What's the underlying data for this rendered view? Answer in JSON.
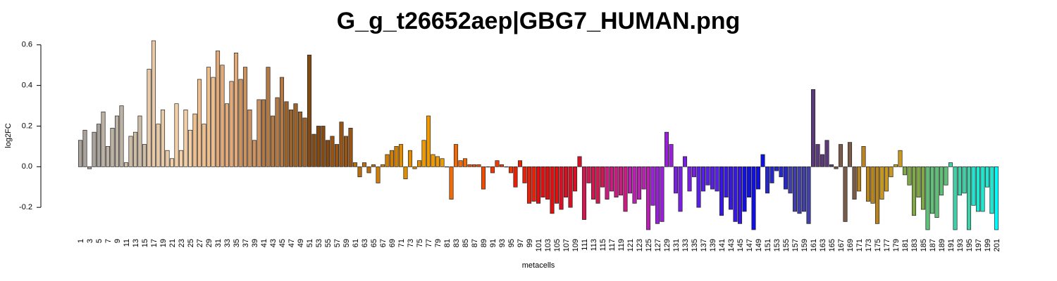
{
  "chart_data": {
    "type": "bar",
    "title": "G_g_t26652aep|GBG7_HUMAN.png",
    "xlabel": "metacells",
    "ylabel": "log2FC",
    "categories": [
      "1",
      null,
      "3",
      null,
      "5",
      null,
      "7",
      null,
      "9",
      null,
      "11",
      null,
      "13",
      null,
      "15",
      null,
      "17",
      null,
      "19",
      null,
      "21",
      null,
      "23",
      null,
      "25",
      null,
      "27",
      null,
      "29",
      null,
      "31",
      null,
      "33",
      null,
      "35",
      null,
      "37",
      null,
      "39",
      null,
      "41",
      null,
      "43",
      null,
      "45",
      null,
      "47",
      null,
      "49",
      null,
      "51",
      null,
      "53",
      null,
      "55",
      null,
      "57",
      null,
      "59",
      null,
      "61",
      null,
      "63",
      null,
      "65",
      null,
      "67",
      null,
      "69",
      null,
      "71",
      null,
      "73",
      null,
      "75",
      null,
      "77",
      null,
      "79",
      null,
      "81",
      null,
      "83",
      null,
      "85",
      null,
      "87",
      null,
      "89",
      null,
      "91",
      null,
      "93",
      null,
      "95",
      null,
      "97",
      null,
      "99",
      null,
      "101",
      null,
      "103",
      null,
      "105",
      null,
      "107",
      null,
      "109",
      null,
      "111",
      null,
      "113",
      null,
      "115",
      null,
      "117",
      null,
      "119",
      null,
      "121",
      null,
      "123",
      null,
      "125",
      null,
      "127",
      null,
      "129",
      null,
      "131",
      null,
      "133",
      null,
      "135",
      null,
      "137",
      null,
      "139",
      null,
      "141",
      null,
      "143",
      null,
      "145",
      null,
      "147",
      null,
      "149",
      null,
      "151",
      null,
      "153",
      null,
      "155",
      null,
      "157",
      null,
      "159",
      null,
      "161",
      null,
      "163",
      null,
      "165",
      null,
      "167",
      null,
      "169",
      null,
      "171",
      null,
      "173",
      null,
      "175",
      null,
      "177",
      null,
      "179",
      null,
      "181",
      null,
      "183",
      null,
      "185",
      null,
      "187",
      null,
      "189",
      null,
      "191",
      null,
      "193",
      null,
      "195",
      null,
      "197",
      null,
      "199",
      null,
      "201"
    ],
    "values": [
      0.13,
      0.18,
      -0.01,
      0.17,
      0.21,
      0.27,
      0.1,
      0.19,
      0.25,
      0.3,
      0.02,
      0.15,
      0.17,
      0.25,
      0.11,
      0.48,
      0.62,
      0.21,
      0.28,
      0.08,
      0.04,
      0.31,
      0.08,
      0.28,
      0.18,
      0.26,
      0.43,
      0.21,
      0.49,
      0.44,
      0.57,
      0.5,
      0.31,
      0.42,
      0.56,
      0.43,
      0.49,
      0.28,
      0.13,
      0.33,
      0.33,
      0.49,
      0.25,
      0.34,
      0.44,
      0.32,
      0.28,
      0.31,
      0.27,
      0.24,
      0.55,
      0.16,
      0.2,
      0.2,
      0.13,
      0.15,
      0.11,
      0.22,
      0.15,
      0.19,
      0.02,
      -0.05,
      0.02,
      -0.03,
      0.01,
      -0.08,
      0.01,
      0.06,
      0.08,
      0.1,
      0.11,
      -0.06,
      0.08,
      -0.01,
      0.03,
      0.13,
      0.25,
      0.06,
      0.05,
      0.04,
      0.0,
      -0.16,
      0.11,
      0.03,
      0.04,
      0.01,
      0.01,
      0.01,
      -0.11,
      0.0,
      -0.03,
      0.03,
      0.01,
      0.0,
      -0.03,
      -0.1,
      0.03,
      -0.08,
      -0.18,
      -0.17,
      -0.18,
      -0.15,
      -0.16,
      -0.23,
      -0.18,
      -0.21,
      -0.15,
      -0.2,
      -0.12,
      0.05,
      -0.26,
      -0.08,
      -0.16,
      -0.18,
      -0.1,
      -0.16,
      -0.12,
      -0.15,
      -0.14,
      -0.22,
      -0.13,
      -0.18,
      -0.16,
      -0.11,
      -0.31,
      -0.19,
      -0.28,
      -0.27,
      0.17,
      0.11,
      -0.13,
      -0.22,
      0.05,
      -0.12,
      -0.05,
      -0.2,
      -0.12,
      -0.09,
      -0.11,
      -0.12,
      -0.24,
      -0.15,
      -0.21,
      -0.27,
      -0.28,
      -0.22,
      -0.15,
      -0.31,
      -0.11,
      0.06,
      -0.13,
      -0.08,
      -0.02,
      -0.05,
      -0.11,
      -0.13,
      -0.22,
      -0.23,
      -0.22,
      -0.28,
      0.38,
      0.11,
      0.06,
      0.13,
      0.01,
      -0.01,
      0.11,
      -0.27,
      0.12,
      -0.16,
      -0.12,
      0.1,
      -0.17,
      -0.18,
      -0.28,
      -0.16,
      -0.12,
      -0.05,
      0.01,
      0.08,
      -0.04,
      -0.09,
      -0.24,
      -0.15,
      -0.21,
      -0.31,
      -0.23,
      -0.25,
      -0.14,
      -0.09,
      0.02,
      -0.31,
      -0.14,
      -0.13,
      -0.31,
      -0.19,
      -0.22,
      -0.22,
      -0.1,
      -0.23,
      -0.31
    ],
    "colors": [
      "#a9a39b",
      "#a9a39b",
      "#a9a39b",
      "#a9a39b",
      "#a9a39b",
      "#bdb3a5",
      "#bdb3a5",
      "#bdb3a5",
      "#bdb3a5",
      "#bdb3a5",
      "#cdbca6",
      "#cdbca6",
      "#cdbca6",
      "#cdbca6",
      "#cdbca6",
      "#e8c9a8",
      "#e8c9a8",
      "#e8c9a8",
      "#e8c9a8",
      "#e8c9a8",
      "#f4cfa6",
      "#f4cfa6",
      "#f4cfa6",
      "#f4cfa6",
      "#f4cfa6",
      "#f0bf8e",
      "#f0bf8e",
      "#f0bf8e",
      "#f0bf8e",
      "#f0bf8e",
      "#e2aa78",
      "#e2aa78",
      "#e2aa78",
      "#e2aa78",
      "#e2aa78",
      "#cc9360",
      "#cc9360",
      "#cc9360",
      "#cc9360",
      "#cc9360",
      "#b47a46",
      "#b47a46",
      "#b47a46",
      "#b47a46",
      "#b47a46",
      "#9c6228",
      "#9c6228",
      "#9c6228",
      "#9c6228",
      "#9c6228",
      "#844a14",
      "#844a14",
      "#844a14",
      "#844a14",
      "#844a14",
      "#985414",
      "#985414",
      "#985414",
      "#985414",
      "#985414",
      "#b86c10",
      "#b86c10",
      "#b86c10",
      "#b86c10",
      "#b86c10",
      "#d07e08",
      "#d07e08",
      "#d07e08",
      "#d07e08",
      "#d07e08",
      "#e08c00",
      "#e08c00",
      "#e08c00",
      "#e08c00",
      "#e08c00",
      "#f09a00",
      "#f09a00",
      "#f09a00",
      "#f09a00",
      "#f09a00",
      "#f06a08",
      "#f06a08",
      "#f06a08",
      "#f06a08",
      "#f06a08",
      "#f04c04",
      "#f04c04",
      "#f04c04",
      "#f04c04",
      "#f04c04",
      "#f03a00",
      "#f03a00",
      "#f03a00",
      "#f03a00",
      "#f03a00",
      "#e82008",
      "#e82008",
      "#e82008",
      "#e82008",
      "#e82008",
      "#e01010",
      "#e01010",
      "#e01010",
      "#e01010",
      "#e01010",
      "#d81024",
      "#d81024",
      "#d81024",
      "#d81024",
      "#d81024",
      "#d01850",
      "#d01850",
      "#d01850",
      "#d01850",
      "#d01850",
      "#c81c80",
      "#c81c80",
      "#c81c80",
      "#c81c80",
      "#c81c80",
      "#b820b0",
      "#b820b0",
      "#b820b0",
      "#b820b0",
      "#b820b0",
      "#9820d8",
      "#9820d8",
      "#9820d8",
      "#9820d8",
      "#9820d8",
      "#7820e0",
      "#7820e0",
      "#7820e0",
      "#7820e0",
      "#7820e0",
      "#5820e4",
      "#5820e4",
      "#5820e4",
      "#5820e4",
      "#5820e4",
      "#3818e0",
      "#3818e0",
      "#3818e0",
      "#3818e0",
      "#3818e0",
      "#1010e0",
      "#1010e0",
      "#1010e0",
      "#1010e0",
      "#1010e0",
      "#2828c8",
      "#2828c8",
      "#2828c8",
      "#2828c8",
      "#2828c8",
      "#4040a8",
      "#4040a8",
      "#4040a8",
      "#4040a8",
      "#4040a8",
      "#5a3a78",
      "#5a3a78",
      "#5a3a78",
      "#5a3a78",
      "#5a3a78",
      "#7a5a48",
      "#7a5a48",
      "#7a5a48",
      "#7a5a48",
      "#7a5a48",
      "#b88420",
      "#b88420",
      "#b88420",
      "#b88420",
      "#b88420",
      "#c89820",
      "#c89820",
      "#c89820",
      "#c89820",
      "#c89820",
      "#80a848",
      "#80a848",
      "#80a848",
      "#80a848",
      "#80a848",
      "#60c078",
      "#60c078",
      "#60c078",
      "#60c078",
      "#60c078",
      "#40d0a8",
      "#40d0a8",
      "#40d0a8",
      "#40d0a8",
      "#40d0a8",
      "#20e8d0",
      "#20e8d0",
      "#20e8d0",
      "#20e8d0",
      "#20e8d0",
      "#00ffff"
    ],
    "ylim": [
      -0.31,
      0.62
    ],
    "yticks": [
      -0.2,
      {
        "value": 0,
        "label": "0.0"
      },
      0.2,
      0.4,
      0.6
    ]
  }
}
